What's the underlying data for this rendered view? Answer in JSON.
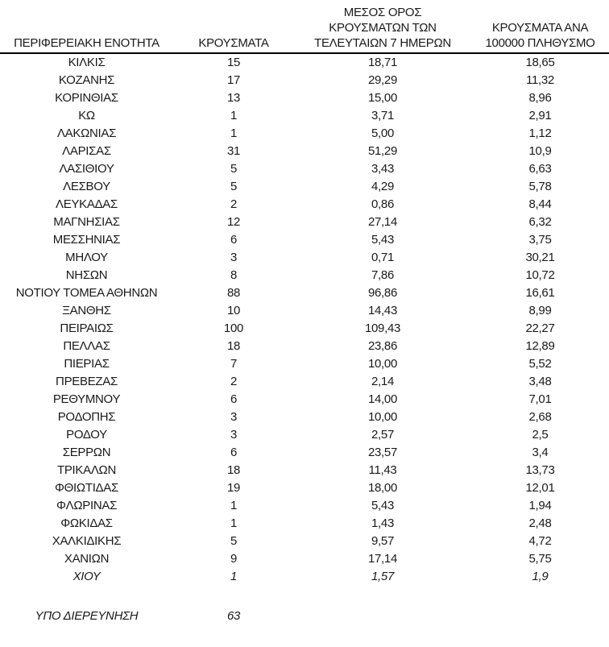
{
  "colors": {
    "background": "#ffffff",
    "text": "#1a1a1a",
    "header_rule": "#000000"
  },
  "table": {
    "columns": [
      {
        "id": "region",
        "lines": [
          "ΠΕΡΙΦΕΡΕΙΑΚΗ ΕΝΟΤΗΤΑ"
        ]
      },
      {
        "id": "cases",
        "lines": [
          "ΚΡΟΥΣΜΑΤΑ"
        ]
      },
      {
        "id": "avg-7day",
        "lines": [
          "ΜΕΣΟΣ ΟΡΟΣ",
          "ΚΡΟΥΣΜΑΤΩΝ ΤΩΝ",
          "ΤΕΛΕΥΤΑΙΩΝ 7 ΗΜΕΡΩΝ"
        ]
      },
      {
        "id": "per-100k",
        "lines": [
          "ΚΡΟΥΣΜΑΤΑ ΑΝΑ",
          "100000 ΠΛΗΘΥΣΜΟ"
        ]
      }
    ],
    "rows": [
      {
        "region": "ΚΙΛΚΙΣ",
        "cases": "15",
        "avg_7day": "18,71",
        "per_100k": "18,65",
        "italic": false
      },
      {
        "region": "ΚΟΖΑΝΗΣ",
        "cases": "17",
        "avg_7day": "29,29",
        "per_100k": "11,32",
        "italic": false
      },
      {
        "region": "ΚΟΡΙΝΘΙΑΣ",
        "cases": "13",
        "avg_7day": "15,00",
        "per_100k": "8,96",
        "italic": false
      },
      {
        "region": "ΚΩ",
        "cases": "1",
        "avg_7day": "3,71",
        "per_100k": "2,91",
        "italic": false
      },
      {
        "region": "ΛΑΚΩΝΙΑΣ",
        "cases": "1",
        "avg_7day": "5,00",
        "per_100k": "1,12",
        "italic": false
      },
      {
        "region": "ΛΑΡΙΣΑΣ",
        "cases": "31",
        "avg_7day": "51,29",
        "per_100k": "10,9",
        "italic": false
      },
      {
        "region": "ΛΑΣΙΘΙΟΥ",
        "cases": "5",
        "avg_7day": "3,43",
        "per_100k": "6,63",
        "italic": false
      },
      {
        "region": "ΛΕΣΒΟΥ",
        "cases": "5",
        "avg_7day": "4,29",
        "per_100k": "5,78",
        "italic": false
      },
      {
        "region": "ΛΕΥΚΑΔΑΣ",
        "cases": "2",
        "avg_7day": "0,86",
        "per_100k": "8,44",
        "italic": false
      },
      {
        "region": "ΜΑΓΝΗΣΙΑΣ",
        "cases": "12",
        "avg_7day": "27,14",
        "per_100k": "6,32",
        "italic": false
      },
      {
        "region": "ΜΕΣΣΗΝΙΑΣ",
        "cases": "6",
        "avg_7day": "5,43",
        "per_100k": "3,75",
        "italic": false
      },
      {
        "region": "ΜΗΛΟΥ",
        "cases": "3",
        "avg_7day": "0,71",
        "per_100k": "30,21",
        "italic": false
      },
      {
        "region": "ΝΗΣΩΝ",
        "cases": "8",
        "avg_7day": "7,86",
        "per_100k": "10,72",
        "italic": false
      },
      {
        "region": "ΝΟΤΙΟΥ ΤΟΜΕΑ ΑΘΗΝΩΝ",
        "cases": "88",
        "avg_7day": "96,86",
        "per_100k": "16,61",
        "italic": false
      },
      {
        "region": "ΞΑΝΘΗΣ",
        "cases": "10",
        "avg_7day": "14,43",
        "per_100k": "8,99",
        "italic": false
      },
      {
        "region": "ΠΕΙΡΑΙΩΣ",
        "cases": "100",
        "avg_7day": "109,43",
        "per_100k": "22,27",
        "italic": false
      },
      {
        "region": "ΠΕΛΛΑΣ",
        "cases": "18",
        "avg_7day": "23,86",
        "per_100k": "12,89",
        "italic": false
      },
      {
        "region": "ΠΙΕΡΙΑΣ",
        "cases": "7",
        "avg_7day": "10,00",
        "per_100k": "5,52",
        "italic": false
      },
      {
        "region": "ΠΡΕΒΕΖΑΣ",
        "cases": "2",
        "avg_7day": "2,14",
        "per_100k": "3,48",
        "italic": false
      },
      {
        "region": "ΡΕΘΥΜΝΟΥ",
        "cases": "6",
        "avg_7day": "14,00",
        "per_100k": "7,01",
        "italic": false
      },
      {
        "region": "ΡΟΔΟΠΗΣ",
        "cases": "3",
        "avg_7day": "10,00",
        "per_100k": "2,68",
        "italic": false
      },
      {
        "region": "ΡΟΔΟΥ",
        "cases": "3",
        "avg_7day": "2,57",
        "per_100k": "2,5",
        "italic": false
      },
      {
        "region": "ΣΕΡΡΩΝ",
        "cases": "6",
        "avg_7day": "23,57",
        "per_100k": "3,4",
        "italic": false
      },
      {
        "region": "ΤΡΙΚΑΛΩΝ",
        "cases": "18",
        "avg_7day": "11,43",
        "per_100k": "13,73",
        "italic": false
      },
      {
        "region": "ΦΘΙΩΤΙΔΑΣ",
        "cases": "19",
        "avg_7day": "18,00",
        "per_100k": "12,01",
        "italic": false
      },
      {
        "region": "ΦΛΩΡΙΝΑΣ",
        "cases": "1",
        "avg_7day": "5,43",
        "per_100k": "1,94",
        "italic": false
      },
      {
        "region": "ΦΩΚΙΔΑΣ",
        "cases": "1",
        "avg_7day": "1,43",
        "per_100k": "2,48",
        "italic": false
      },
      {
        "region": "ΧΑΛΚΙΔΙΚΗΣ",
        "cases": "5",
        "avg_7day": "9,57",
        "per_100k": "4,72",
        "italic": false
      },
      {
        "region": "ΧΑΝΙΩΝ",
        "cases": "9",
        "avg_7day": "17,14",
        "per_100k": "5,75",
        "italic": false
      },
      {
        "region": "ΧΙΟΥ",
        "cases": "1",
        "avg_7day": "1,57",
        "per_100k": "1,9",
        "italic": true
      }
    ],
    "footer": {
      "label": "ΥΠΟ ΔΙΕΡΕΥΝΗΣΗ",
      "cases": "63",
      "avg_7day": "",
      "per_100k": "",
      "italic": true
    }
  }
}
